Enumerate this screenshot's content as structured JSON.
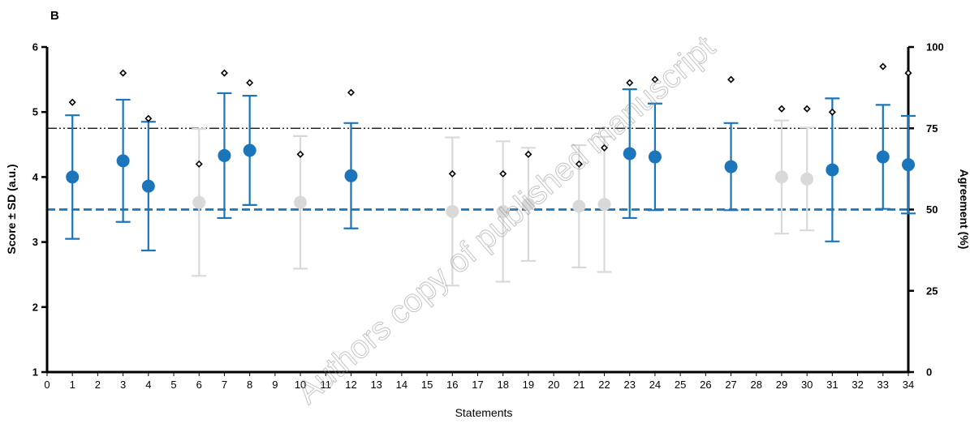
{
  "chart_data": {
    "type": "scatter",
    "panel_label": "B",
    "xlabel": "Statements",
    "ylabel": "Score ± SD (a.u.)",
    "y2label": "Agreement (%)",
    "xlim": [
      0,
      34
    ],
    "ylim": [
      1,
      6
    ],
    "y2lim": [
      0,
      100
    ],
    "xticks": [
      0,
      1,
      2,
      3,
      4,
      5,
      6,
      7,
      8,
      9,
      10,
      11,
      12,
      13,
      14,
      15,
      16,
      17,
      18,
      19,
      20,
      21,
      22,
      23,
      24,
      25,
      26,
      27,
      28,
      29,
      30,
      31,
      32,
      33,
      34
    ],
    "yticks": [
      1,
      2,
      3,
      4,
      5,
      6
    ],
    "y2ticks": [
      0,
      25,
      50,
      75,
      100
    ],
    "reference_lines": [
      {
        "axis": "y",
        "value": 3.5,
        "style": "dashed",
        "color": "#1a75bb"
      },
      {
        "axis": "y2",
        "value": 75,
        "style": "dash-dot-dot",
        "color": "#000000"
      }
    ],
    "colors": {
      "consensus": "#1a75bb",
      "no_consensus": "#d9d9d9",
      "agreement_marker": "#000000"
    },
    "score_series": [
      {
        "x": 1,
        "mean": 4.0,
        "sd": 0.95,
        "consensus": true
      },
      {
        "x": 3,
        "mean": 4.25,
        "sd": 0.94,
        "consensus": true
      },
      {
        "x": 4,
        "mean": 3.86,
        "sd": 0.99,
        "consensus": true
      },
      {
        "x": 6,
        "mean": 3.61,
        "sd": 1.13,
        "consensus": false
      },
      {
        "x": 7,
        "mean": 4.33,
        "sd": 0.96,
        "consensus": true
      },
      {
        "x": 8,
        "mean": 4.41,
        "sd": 0.84,
        "consensus": true
      },
      {
        "x": 10,
        "mean": 3.61,
        "sd": 1.02,
        "consensus": false
      },
      {
        "x": 12,
        "mean": 4.02,
        "sd": 0.81,
        "consensus": true
      },
      {
        "x": 16,
        "mean": 3.47,
        "sd": 1.14,
        "consensus": false
      },
      {
        "x": 18,
        "mean": 3.47,
        "sd": 1.08,
        "consensus": false
      },
      {
        "x": 19,
        "mean": 3.58,
        "sd": 0.87,
        "consensus": false
      },
      {
        "x": 21,
        "mean": 3.55,
        "sd": 0.94,
        "consensus": false
      },
      {
        "x": 22,
        "mean": 3.58,
        "sd": 1.04,
        "consensus": false
      },
      {
        "x": 23,
        "mean": 4.36,
        "sd": 0.99,
        "consensus": true
      },
      {
        "x": 24,
        "mean": 4.31,
        "sd": 0.82,
        "consensus": true
      },
      {
        "x": 27,
        "mean": 4.16,
        "sd": 0.67,
        "consensus": true
      },
      {
        "x": 29,
        "mean": 4.0,
        "sd": 0.87,
        "consensus": false
      },
      {
        "x": 30,
        "mean": 3.97,
        "sd": 0.79,
        "consensus": false
      },
      {
        "x": 31,
        "mean": 4.11,
        "sd": 1.1,
        "consensus": true
      },
      {
        "x": 33,
        "mean": 4.31,
        "sd": 0.8,
        "consensus": true
      },
      {
        "x": 34,
        "mean": 4.19,
        "sd": 0.75,
        "consensus": true
      }
    ],
    "agreement_series": [
      {
        "x": 1,
        "value": 83
      },
      {
        "x": 3,
        "value": 92
      },
      {
        "x": 4,
        "value": 78
      },
      {
        "x": 6,
        "value": 64
      },
      {
        "x": 7,
        "value": 92
      },
      {
        "x": 8,
        "value": 89
      },
      {
        "x": 10,
        "value": 67
      },
      {
        "x": 12,
        "value": 86
      },
      {
        "x": 16,
        "value": 61
      },
      {
        "x": 18,
        "value": 61
      },
      {
        "x": 19,
        "value": 67
      },
      {
        "x": 21,
        "value": 64
      },
      {
        "x": 22,
        "value": 69
      },
      {
        "x": 23,
        "value": 89
      },
      {
        "x": 24,
        "value": 90
      },
      {
        "x": 27,
        "value": 90
      },
      {
        "x": 29,
        "value": 81
      },
      {
        "x": 30,
        "value": 81
      },
      {
        "x": 31,
        "value": 80
      },
      {
        "x": 33,
        "value": 94
      },
      {
        "x": 34,
        "value": 92
      }
    ]
  },
  "watermark": "Authors copy of published manuscript"
}
